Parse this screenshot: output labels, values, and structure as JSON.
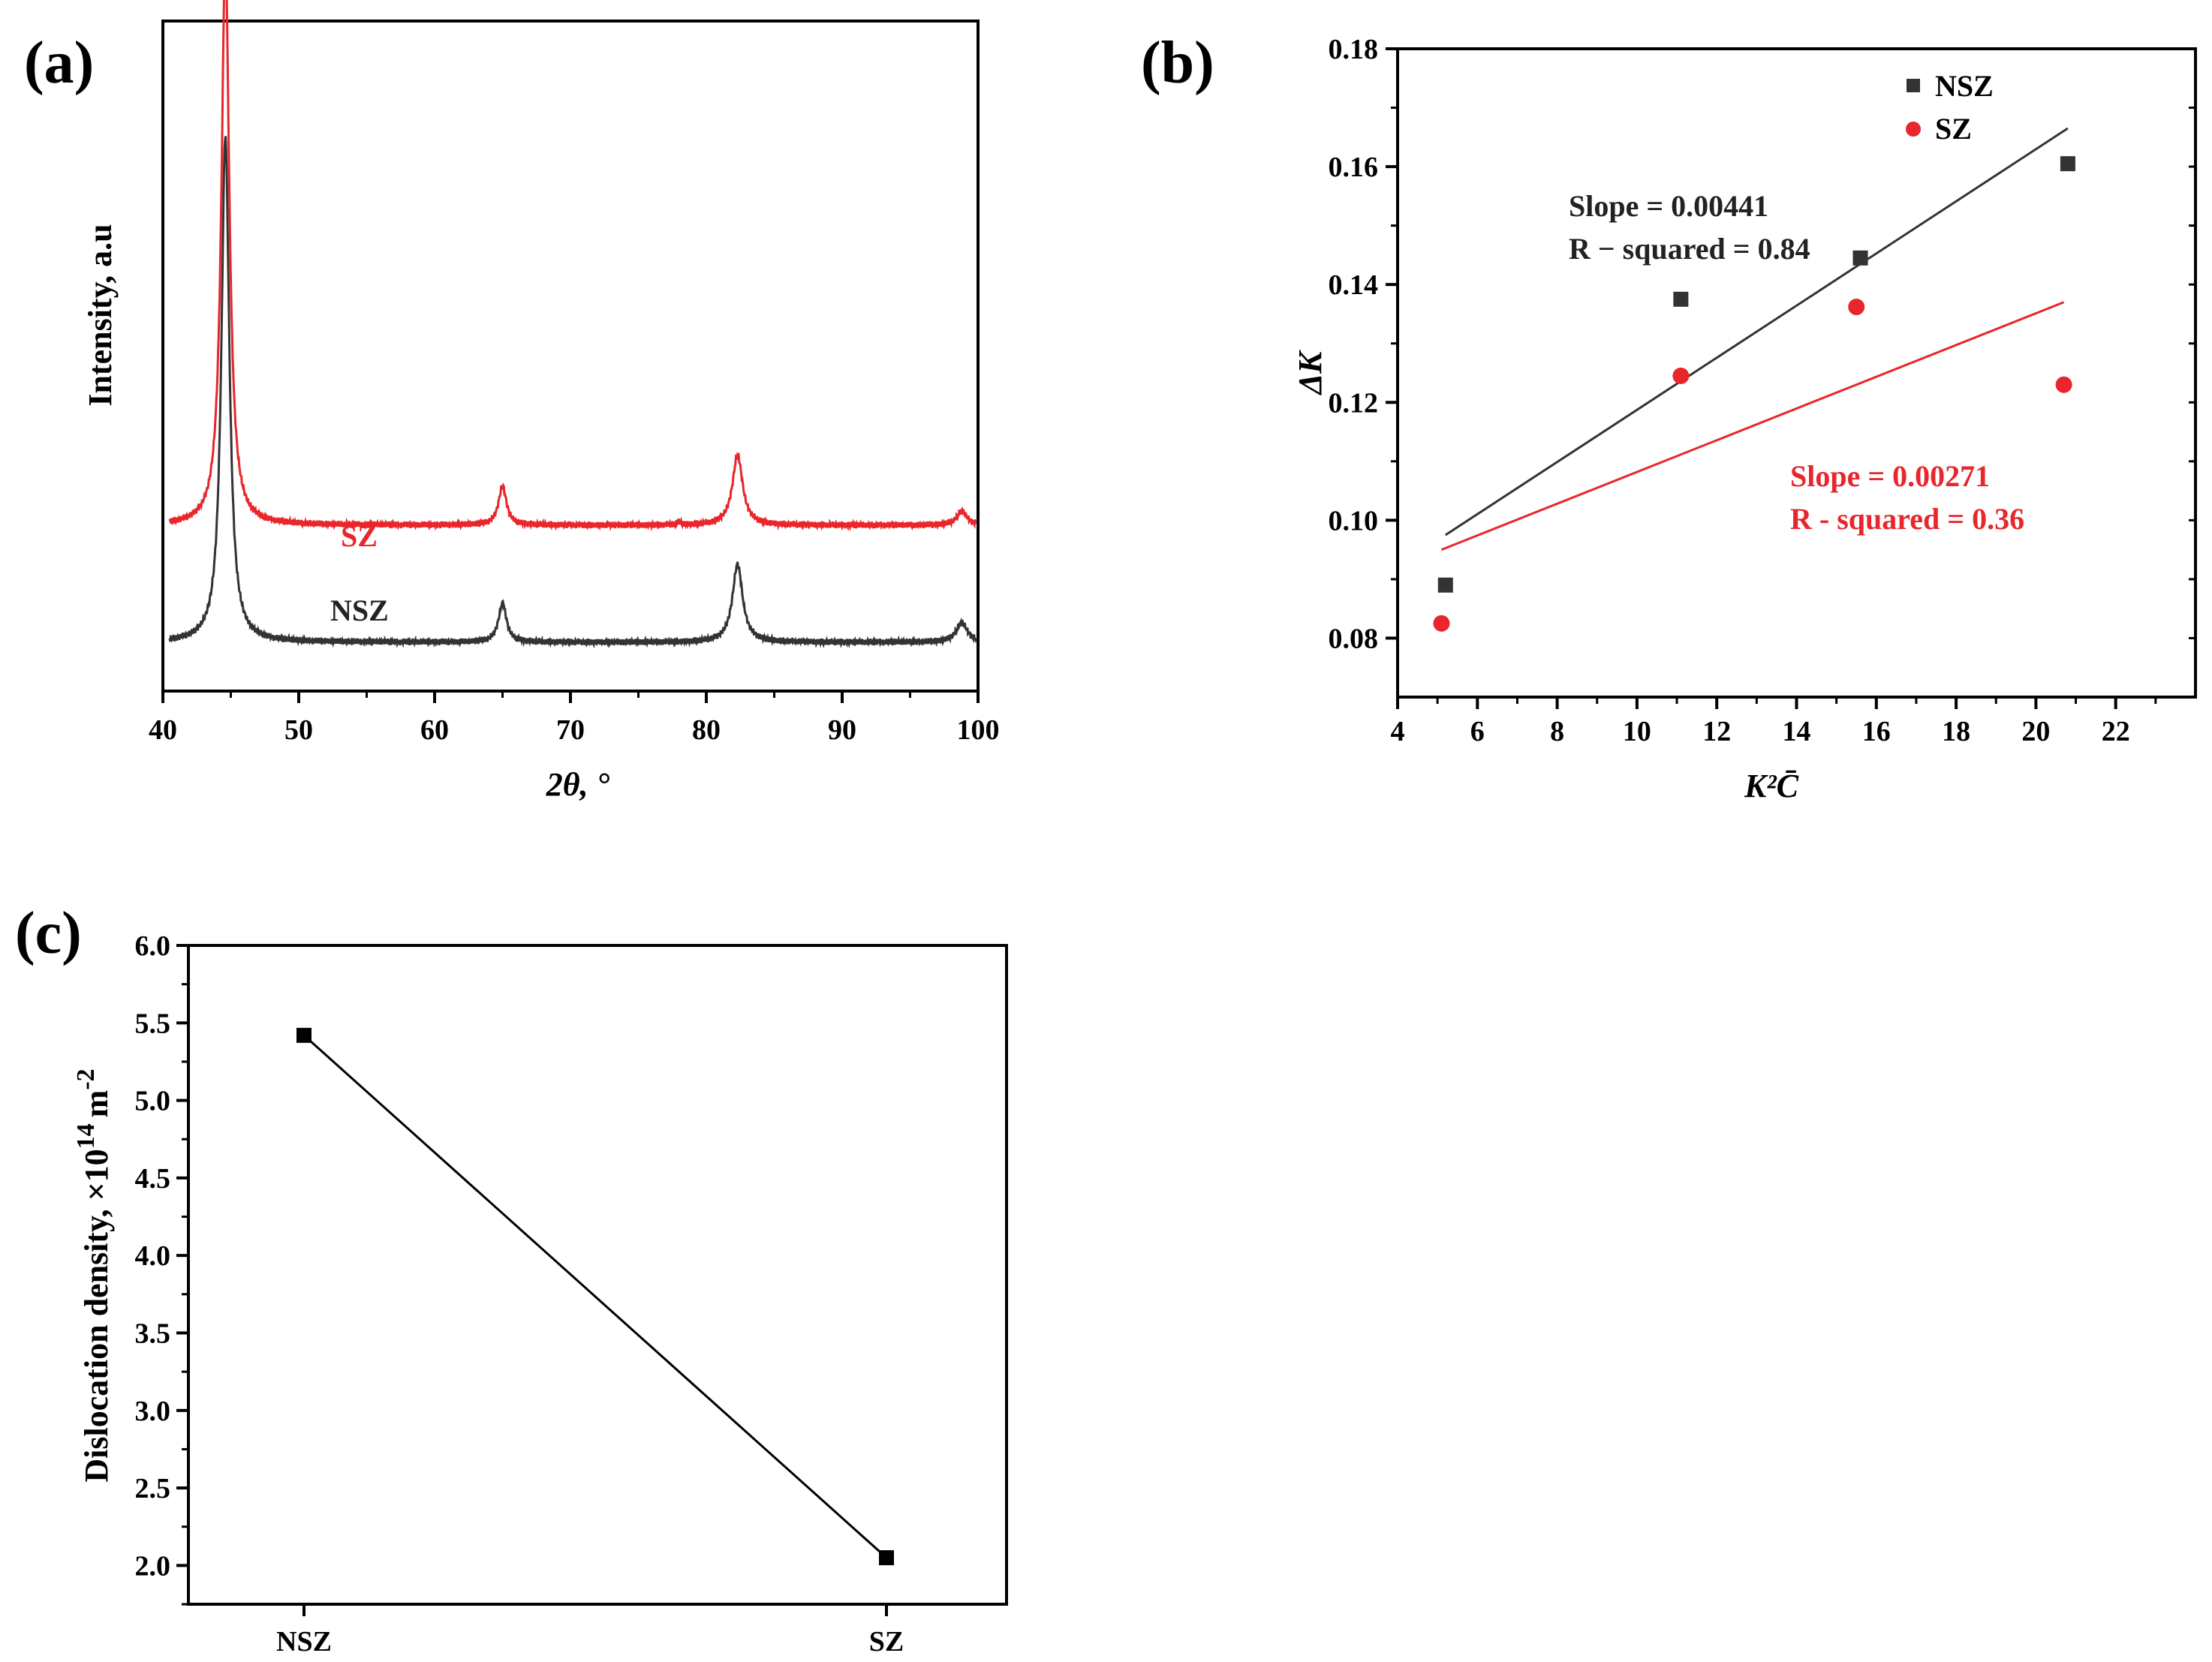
{
  "chart_data": [
    {
      "panel": "(a)",
      "type": "line",
      "xlabel": "2θ, °",
      "ylabel": "Intensity, a.u",
      "xlim": [
        40,
        100
      ],
      "xticks": [
        40,
        50,
        60,
        70,
        80,
        90,
        100
      ],
      "yticks_shown": false,
      "series": [
        {
          "name": "SZ",
          "color": "#e8262b",
          "baseline": 1.5,
          "peaks": [
            {
              "x": 44.6,
              "height": 7.3,
              "width": 0.35
            },
            {
              "x": 65.0,
              "height": 0.5,
              "width": 0.35
            },
            {
              "x": 78.0,
              "height": 0.04,
              "width": 0.15
            },
            {
              "x": 82.3,
              "height": 0.9,
              "width": 0.45
            },
            {
              "x": 98.8,
              "height": 0.18,
              "width": 0.45
            }
          ]
        },
        {
          "name": "NSZ",
          "color": "#333333",
          "baseline": 0.0,
          "peaks": [
            {
              "x": 44.6,
              "height": 6.5,
              "width": 0.35
            },
            {
              "x": 65.0,
              "height": 0.5,
              "width": 0.35
            },
            {
              "x": 82.3,
              "height": 1.0,
              "width": 0.45
            },
            {
              "x": 98.8,
              "height": 0.25,
              "width": 0.5
            }
          ]
        }
      ]
    },
    {
      "panel": "(b)",
      "type": "scatter",
      "xlabel": "K²C̄",
      "ylabel": "ΔK",
      "xlim": [
        4,
        24
      ],
      "ylim": [
        0.07,
        0.18
      ],
      "xticks": [
        4,
        6,
        8,
        10,
        12,
        14,
        16,
        18,
        20,
        22
      ],
      "yticks": [
        0.08,
        0.1,
        0.12,
        0.14,
        0.16,
        0.18
      ],
      "series": [
        {
          "name": "NSZ",
          "marker": "square",
          "color": "#333333",
          "x": [
            5.2,
            11.1,
            15.6,
            20.8
          ],
          "y": [
            0.089,
            0.1375,
            0.1445,
            0.1605
          ],
          "fit": {
            "x": [
              5.2,
              20.8
            ],
            "y": [
              0.0975,
              0.1665
            ]
          },
          "annotation": [
            "Slope = 0.00441",
            "R − squared = 0.84"
          ]
        },
        {
          "name": "SZ",
          "marker": "circle",
          "color": "#e8262b",
          "x": [
            5.1,
            11.1,
            15.5,
            20.7
          ],
          "y": [
            0.0825,
            0.1245,
            0.1362,
            0.123
          ],
          "fit": {
            "x": [
              5.1,
              20.7
            ],
            "y": [
              0.095,
              0.137
            ]
          },
          "annotation": [
            "Slope = 0.00271",
            "R - squared = 0.36"
          ]
        }
      ],
      "legend": "top-right"
    },
    {
      "panel": "(c)",
      "type": "line",
      "categories": [
        "NSZ",
        "SZ"
      ],
      "values": [
        5.42,
        2.05
      ],
      "ylabel": "Dislocation density, ×10",
      "ylabel_exp": "14",
      "ylabel_unit": "m",
      "ylabel_unit_exp": "-2",
      "ylim": [
        1.75,
        6.0
      ],
      "yticks": [
        "2.0",
        "2.5",
        "3.0",
        "3.5",
        "4.0",
        "4.5",
        "5.0",
        "5.5",
        "6.0"
      ],
      "color": "#000000"
    }
  ]
}
